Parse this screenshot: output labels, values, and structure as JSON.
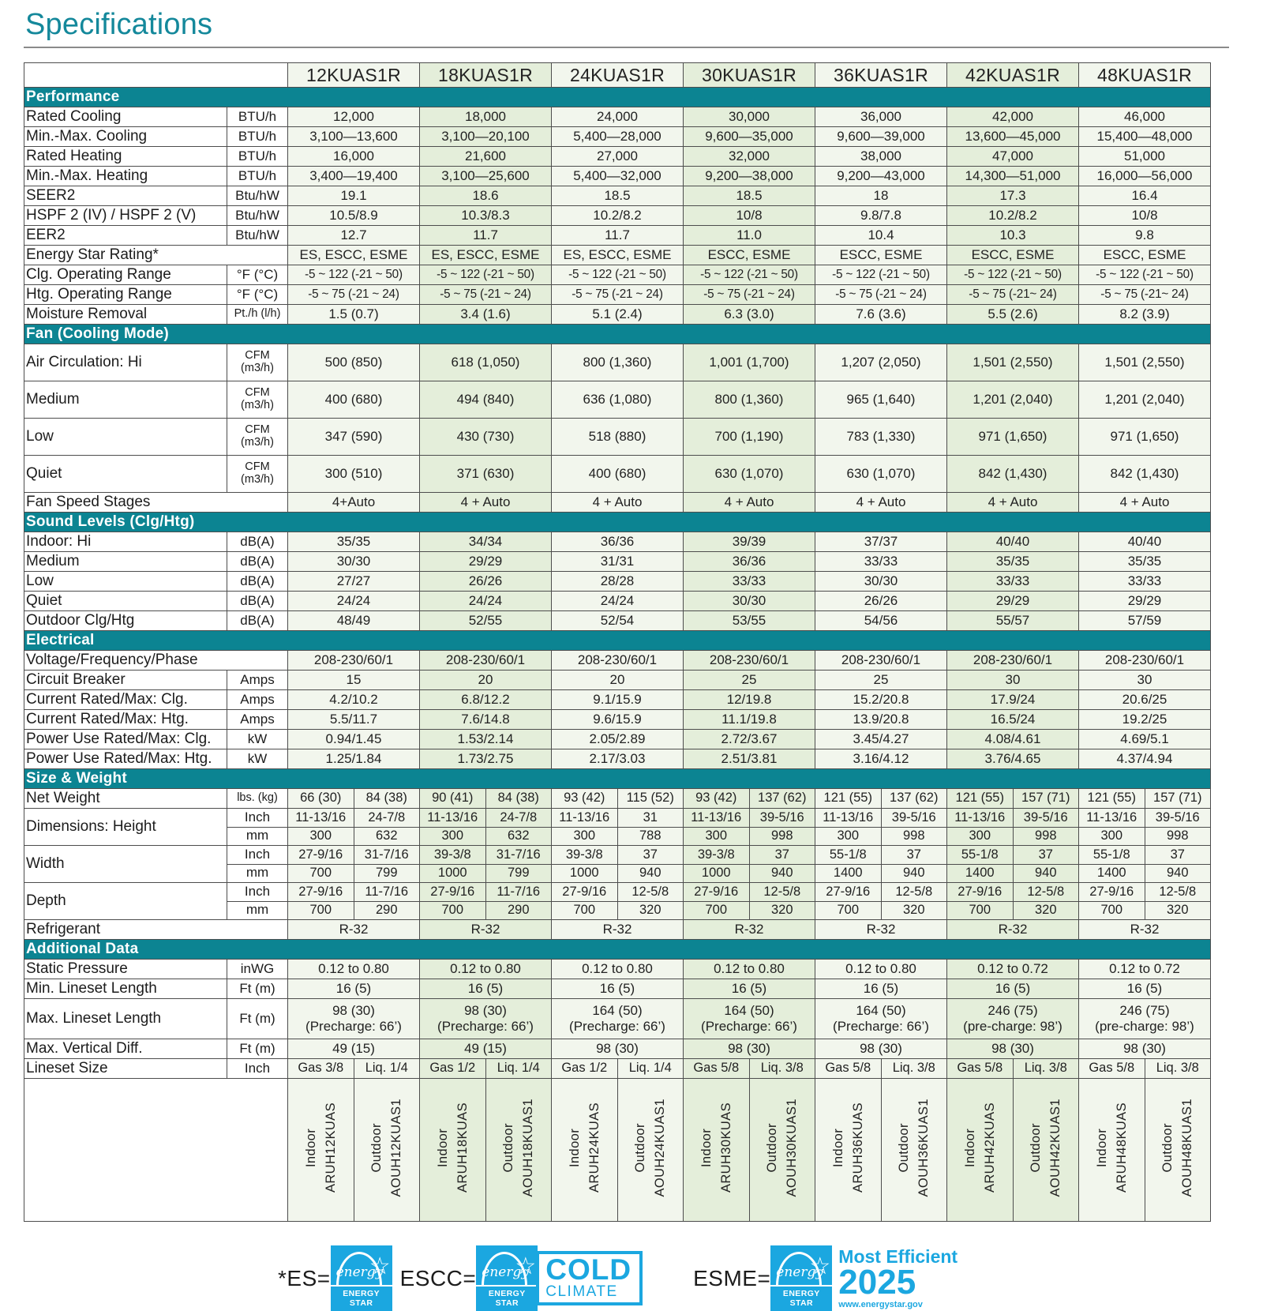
{
  "page_title": "Specifications",
  "colors": {
    "section_teal": "#0c8492",
    "energy_star_blue": "#1ba7e0",
    "column_pale": "#f2f6ed",
    "column_green": "#e4eeda"
  },
  "models": [
    "12KUAS1R",
    "18KUAS1R",
    "24KUAS1R",
    "30KUAS1R",
    "36KUAS1R",
    "42KUAS1R",
    "48KUAS1R"
  ],
  "sections": [
    {
      "name": "Performance",
      "rows": [
        {
          "label": "Rated Cooling",
          "unit": "BTU/h",
          "values": [
            "12,000",
            "18,000",
            "24,000",
            "30,000",
            "36,000",
            "42,000",
            "46,000"
          ]
        },
        {
          "label": "Min.-Max. Cooling",
          "unit": "BTU/h",
          "values": [
            "3,100—13,600",
            "3,100—20,100",
            "5,400—28,000",
            "9,600—35,000",
            "9,600—39,000",
            "13,600—45,000",
            "15,400—48,000"
          ]
        },
        {
          "label": "Rated Heating",
          "unit": "BTU/h",
          "values": [
            "16,000",
            "21,600",
            "27,000",
            "32,000",
            "38,000",
            "47,000",
            "51,000"
          ]
        },
        {
          "label": "Min.-Max. Heating",
          "unit": "BTU/h",
          "values": [
            "3,400—19,400",
            "3,100—25,600",
            "5,400—32,000",
            "9,200—38,000",
            "9,200—43,000",
            "14,300—51,000",
            "16,000—56,000"
          ]
        },
        {
          "label": "SEER2",
          "unit": "Btu/hW",
          "values": [
            "19.1",
            "18.6",
            "18.5",
            "18.5",
            "18",
            "17.3",
            "16.4"
          ]
        },
        {
          "label": "HSPF 2 (IV) / HSPF 2 (V)",
          "unit": "Btu/hW",
          "values": [
            "10.5/8.9",
            "10.3/8.3",
            "10.2/8.2",
            "10/8",
            "9.8/7.8",
            "10.2/8.2",
            "10/8"
          ]
        },
        {
          "label": "EER2",
          "unit": "Btu/hW",
          "values": [
            "12.7",
            "11.7",
            "11.7",
            "11.0",
            "10.4",
            "10.3",
            "9.8"
          ]
        },
        {
          "label": "Energy Star Rating*",
          "unit": null,
          "values": [
            "ES, ESCC, ESME",
            "ES, ESCC, ESME",
            "ES, ESCC, ESME",
            "ESCC, ESME",
            "ESCC, ESME",
            "ESCC, ESME",
            "ESCC, ESME"
          ]
        },
        {
          "label": "Clg. Operating Range",
          "unit": "°F (°C)",
          "compact": true,
          "values": [
            "-5 ~ 122 (-21 ~ 50)",
            "-5 ~ 122 (-21 ~ 50)",
            "-5 ~ 122 (-21 ~ 50)",
            "-5 ~ 122 (-21 ~ 50)",
            "-5 ~ 122 (-21 ~ 50)",
            "-5 ~ 122 (-21 ~ 50)",
            "-5 ~ 122 (-21 ~ 50)"
          ]
        },
        {
          "label": "Htg. Operating Range",
          "unit": "°F (°C)",
          "compact": true,
          "values": [
            "-5 ~ 75 (-21 ~ 24)",
            "-5 ~ 75 (-21 ~ 24)",
            "-5 ~ 75 (-21 ~ 24)",
            "-5 ~ 75 (-21 ~ 24)",
            "-5 ~ 75 (-21 ~ 24)",
            "-5 ~ 75 (-21~ 24)",
            "-5 ~ 75 (-21~ 24)"
          ]
        },
        {
          "label": "Moisture Removal",
          "unit": "Pt./h (l/h)",
          "values": [
            "1.5 (0.7)",
            "3.4 (1.6)",
            "5.1 (2.4)",
            "6.3 (3.0)",
            "7.6 (3.6)",
            "5.5 (2.6)",
            "8.2 (3.9)"
          ]
        }
      ]
    },
    {
      "name": "Fan (Cooling Mode)",
      "rows": [
        {
          "label": "Air Circulation: Hi",
          "unit": "CFM|(m3/h)",
          "tall": true,
          "values": [
            "500 (850)",
            "618 (1,050)",
            "800 (1,360)",
            "1,001 (1,700)",
            "1,207 (2,050)",
            "1,501 (2,550)",
            "1,501 (2,550)"
          ]
        },
        {
          "label": "Medium",
          "unit": "CFM|(m3/h)",
          "tall": true,
          "values": [
            "400 (680)",
            "494 (840)",
            "636 (1,080)",
            "800 (1,360)",
            "965 (1,640)",
            "1,201 (2,040)",
            "1,201 (2,040)"
          ]
        },
        {
          "label": "Low",
          "unit": "CFM|(m3/h)",
          "tall": true,
          "values": [
            "347 (590)",
            "430 (730)",
            "518 (880)",
            "700 (1,190)",
            "783 (1,330)",
            "971 (1,650)",
            "971 (1,650)"
          ]
        },
        {
          "label": "Quiet",
          "unit": "CFM|(m3/h)",
          "tall": true,
          "values": [
            "300 (510)",
            "371 (630)",
            "400 (680)",
            "630 (1,070)",
            "630 (1,070)",
            "842 (1,430)",
            "842 (1,430)"
          ]
        },
        {
          "label": "Fan Speed Stages",
          "unit": null,
          "values": [
            "4+Auto",
            "4 + Auto",
            "4 + Auto",
            "4 + Auto",
            "4 + Auto",
            "4 + Auto",
            "4 + Auto"
          ]
        }
      ]
    },
    {
      "name": "Sound Levels (Clg/Htg)",
      "rows": [
        {
          "label": "Indoor: Hi",
          "unit": "dB(A)",
          "values": [
            "35/35",
            "34/34",
            "36/36",
            "39/39",
            "37/37",
            "40/40",
            "40/40"
          ]
        },
        {
          "label": "Medium",
          "unit": "dB(A)",
          "values": [
            "30/30",
            "29/29",
            "31/31",
            "36/36",
            "33/33",
            "35/35",
            "35/35"
          ]
        },
        {
          "label": "Low",
          "unit": "dB(A)",
          "values": [
            "27/27",
            "26/26",
            "28/28",
            "33/33",
            "30/30",
            "33/33",
            "33/33"
          ]
        },
        {
          "label": "Quiet",
          "unit": "dB(A)",
          "values": [
            "24/24",
            "24/24",
            "24/24",
            "30/30",
            "26/26",
            "29/29",
            "29/29"
          ]
        },
        {
          "label": "Outdoor Clg/Htg",
          "unit": "dB(A)",
          "values": [
            "48/49",
            "52/55",
            "52/54",
            "53/55",
            "54/56",
            "55/57",
            "57/59"
          ]
        }
      ]
    },
    {
      "name": "Electrical",
      "rows": [
        {
          "label": "Voltage/Frequency/Phase",
          "unit": null,
          "values": [
            "208-230/60/1",
            "208-230/60/1",
            "208-230/60/1",
            "208-230/60/1",
            "208-230/60/1",
            "208-230/60/1",
            "208-230/60/1"
          ]
        },
        {
          "label": "Circuit Breaker",
          "unit": "Amps",
          "values": [
            "15",
            "20",
            "20",
            "25",
            "25",
            "30",
            "30"
          ]
        },
        {
          "label": "Current Rated/Max: Clg.",
          "unit": "Amps",
          "values": [
            "4.2/10.2",
            "6.8/12.2",
            "9.1/15.9",
            "12/19.8",
            "15.2/20.8",
            "17.9/24",
            "20.6/25"
          ]
        },
        {
          "label": "Current Rated/Max: Htg.",
          "unit": "Amps",
          "values": [
            "5.5/11.7",
            "7.6/14.8",
            "9.6/15.9",
            "11.1/19.8",
            "13.9/20.8",
            "16.5/24",
            "19.2/25"
          ]
        },
        {
          "label": "Power Use Rated/Max: Clg.",
          "unit": "kW",
          "values": [
            "0.94/1.45",
            "1.53/2.14",
            "2.05/2.89",
            "2.72/3.67",
            "3.45/4.27",
            "4.08/4.61",
            "4.69/5.1"
          ]
        },
        {
          "label": "Power Use Rated/Max: Htg.",
          "unit": "kW",
          "values": [
            "1.25/1.84",
            "1.73/2.75",
            "2.17/3.03",
            "2.51/3.81",
            "3.16/4.12",
            "3.76/4.65",
            "4.37/4.94"
          ]
        }
      ]
    },
    {
      "name": "Size & Weight",
      "rows": [
        {
          "label": "Net Weight",
          "unit": "lbs. (kg)",
          "split": true,
          "values": [
            "66 (30)",
            "84 (38)",
            "90 (41)",
            "84 (38)",
            "93 (42)",
            "115 (52)",
            "93 (42)",
            "137 (62)",
            "121 (55)",
            "137 (62)",
            "121 (55)",
            "157 (71)",
            "121 (55)",
            "157 (71)"
          ]
        },
        {
          "label": "Dimensions: Height",
          "subrows": [
            {
              "unit": "Inch",
              "values": [
                "11-13/16",
                "24-7/8",
                "11-13/16",
                "24-7/8",
                "11-13/16",
                "31",
                "11-13/16",
                "39-5/16",
                "11-13/16",
                "39-5/16",
                "11-13/16",
                "39-5/16",
                "11-13/16",
                "39-5/16"
              ]
            },
            {
              "unit": "mm",
              "values": [
                "300",
                "632",
                "300",
                "632",
                "300",
                "788",
                "300",
                "998",
                "300",
                "998",
                "300",
                "998",
                "300",
                "998"
              ]
            }
          ]
        },
        {
          "label": "Width",
          "subrows": [
            {
              "unit": "Inch",
              "values": [
                "27-9/16",
                "31-7/16",
                "39-3/8",
                "31-7/16",
                "39-3/8",
                "37",
                "39-3/8",
                "37",
                "55-1/8",
                "37",
                "55-1/8",
                "37",
                "55-1/8",
                "37"
              ]
            },
            {
              "unit": "mm",
              "values": [
                "700",
                "799",
                "1000",
                "799",
                "1000",
                "940",
                "1000",
                "940",
                "1400",
                "940",
                "1400",
                "940",
                "1400",
                "940"
              ]
            }
          ]
        },
        {
          "label": "Depth",
          "subrows": [
            {
              "unit": "Inch",
              "values": [
                "27-9/16",
                "11-7/16",
                "27-9/16",
                "11-7/16",
                "27-9/16",
                "12-5/8",
                "27-9/16",
                "12-5/8",
                "27-9/16",
                "12-5/8",
                "27-9/16",
                "12-5/8",
                "27-9/16",
                "12-5/8"
              ]
            },
            {
              "unit": "mm",
              "values": [
                "700",
                "290",
                "700",
                "290",
                "700",
                "320",
                "700",
                "320",
                "700",
                "320",
                "700",
                "320",
                "700",
                "320"
              ]
            }
          ]
        },
        {
          "label": "Refrigerant",
          "unit": null,
          "values": [
            "R-32",
            "R-32",
            "R-32",
            "R-32",
            "R-32",
            "R-32",
            "R-32"
          ]
        }
      ]
    },
    {
      "name": "Additional Data",
      "rows": [
        {
          "label": "Static Pressure",
          "unit": "inWG",
          "values": [
            "0.12 to 0.80",
            "0.12 to 0.80",
            "0.12 to 0.80",
            "0.12 to 0.80",
            "0.12 to 0.80",
            "0.12 to 0.72",
            "0.12 to 0.72"
          ]
        },
        {
          "label": "Min. Lineset Length",
          "unit": "Ft (m)",
          "values": [
            "16 (5)",
            "16 (5)",
            "16 (5)",
            "16 (5)",
            "16 (5)",
            "16 (5)",
            "16 (5)"
          ]
        },
        {
          "label": "Max. Lineset Length",
          "unit": "Ft (m)",
          "tall2": true,
          "values": [
            "98 (30)|(Precharge: 66’)",
            "98 (30)|(Precharge: 66’)",
            "164 (50)|(Precharge: 66’)",
            "164 (50)|(Precharge: 66’)",
            "164 (50)|(Precharge: 66’)",
            "246 (75)|(pre-charge: 98’)",
            "246 (75)|(pre-charge: 98’)"
          ]
        },
        {
          "label": "Max. Vertical Diff.",
          "unit": "Ft (m)",
          "values": [
            "49 (15)",
            "49 (15)",
            "98 (30)",
            "98 (30)",
            "98 (30)",
            "98 (30)",
            "98 (30)"
          ]
        },
        {
          "label": "Lineset Size",
          "unit": "Inch",
          "split": true,
          "values": [
            "Gas 3/8",
            "Liq. 1/4",
            "Gas 1/2",
            "Liq. 1/4",
            "Gas 1/2",
            "Liq. 1/4",
            "Gas 5/8",
            "Liq. 3/8",
            "Gas 5/8",
            "Liq. 3/8",
            "Gas 5/8",
            "Liq. 3/8",
            "Gas 5/8",
            "Liq. 3/8"
          ]
        }
      ]
    }
  ],
  "model_codes": [
    {
      "type": "Indoor",
      "code": "ARUH12KUAS"
    },
    {
      "type": "Outdoor",
      "code": "AOUH12KUAS1"
    },
    {
      "type": "Indoor",
      "code": "ARUH18KUAS"
    },
    {
      "type": "Outdoor",
      "code": "AOUH18KUAS1"
    },
    {
      "type": "Indoor",
      "code": "ARUH24KUAS"
    },
    {
      "type": "Outdoor",
      "code": "AOUH24KUAS1"
    },
    {
      "type": "Indoor",
      "code": "ARUH30KUAS"
    },
    {
      "type": "Outdoor",
      "code": "AOUH30KUAS1"
    },
    {
      "type": "Indoor",
      "code": "ARUH36KUAS"
    },
    {
      "type": "Outdoor",
      "code": "AOUH36KUAS1"
    },
    {
      "type": "Indoor",
      "code": "ARUH42KUAS"
    },
    {
      "type": "Outdoor",
      "code": "AOUH42KUAS1"
    },
    {
      "type": "Indoor",
      "code": "ARUH48KUAS"
    },
    {
      "type": "Outdoor",
      "code": "AOUH48KUAS1"
    }
  ],
  "legend": {
    "es_label": "*ES=",
    "escc_label": "ESCC=",
    "esme_label": "ESME=",
    "logo_script": "energy",
    "logo_star": "☆",
    "logo_band": "ENERGY STAR",
    "cold_line1": "COLD",
    "cold_line2": "CLIMATE",
    "esme_line1": "Most Efficient",
    "esme_line2": "2025",
    "esme_link": "www.energystar.gov"
  }
}
